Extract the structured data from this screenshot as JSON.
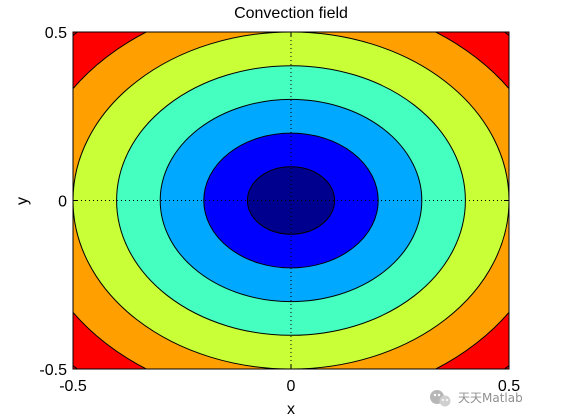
{
  "chart_data": {
    "type": "contourf",
    "title": "Convection field",
    "xlabel": "x",
    "ylabel": "y",
    "xlim": [
      -0.5,
      0.5
    ],
    "ylim": [
      -0.5,
      0.5
    ],
    "xticks": [
      "-0.5",
      "0",
      "0.5"
    ],
    "yticks": [
      "-0.5",
      "0",
      "0.5"
    ],
    "grid": "dotted lines at x=0 and y=0",
    "function": "x^2 + y^2",
    "contour_levels": [
      0.01,
      0.04,
      0.09,
      0.16,
      0.25,
      0.36,
      0.49
    ],
    "fill_colors": [
      "#00008f",
      "#0000ff",
      "#00a8ff",
      "#44ffbf",
      "#c8ff37",
      "#ff9f00",
      "#ff0000",
      "#800000"
    ]
  },
  "watermark": {
    "text": "天天Matlab"
  }
}
